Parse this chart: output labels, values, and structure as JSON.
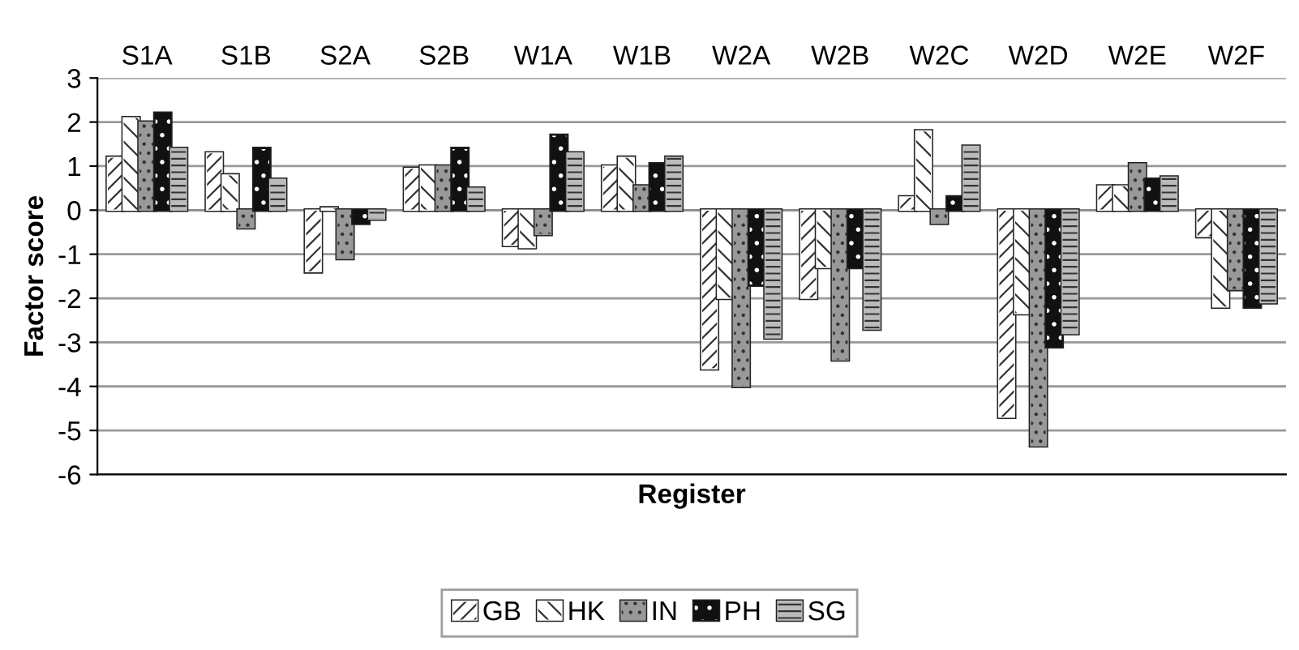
{
  "chart_data": {
    "type": "bar",
    "xlabel": "Register",
    "ylabel": "Factor score",
    "categories": [
      "S1A",
      "S1B",
      "S2A",
      "S2B",
      "W1A",
      "W1B",
      "W2A",
      "W2B",
      "W2C",
      "W2D",
      "W2E",
      "W2F"
    ],
    "series": [
      {
        "name": "GB",
        "color": "#ffffff",
        "values": [
          1.2,
          1.3,
          -1.4,
          0.95,
          -0.8,
          1.0,
          -3.6,
          -2.0,
          0.3,
          -4.7,
          0.55,
          -0.6
        ]
      },
      {
        "name": "HK",
        "color": "#ffffff",
        "values": [
          2.1,
          0.8,
          0.05,
          1.0,
          -0.85,
          1.2,
          -2.0,
          -1.3,
          1.8,
          -2.35,
          0.55,
          -2.2
        ]
      },
      {
        "name": "IN",
        "color": "#999999",
        "values": [
          2.0,
          -0.4,
          -1.1,
          1.0,
          -0.55,
          0.55,
          -4.0,
          -3.4,
          -0.3,
          -5.35,
          1.05,
          -1.8
        ]
      },
      {
        "name": "PH",
        "color": "#111111",
        "values": [
          2.2,
          1.4,
          -0.3,
          1.4,
          1.7,
          1.05,
          -1.7,
          -1.3,
          0.3,
          -3.1,
          0.7,
          -2.2
        ]
      },
      {
        "name": "SG",
        "color": "#bbbbbb",
        "values": [
          1.4,
          0.7,
          -0.2,
          0.5,
          1.3,
          1.2,
          -2.9,
          -2.7,
          1.45,
          -2.8,
          0.75,
          -2.1
        ]
      }
    ],
    "ylim": [
      -6,
      3
    ],
    "yticks": [
      -6,
      -5,
      -4,
      -3,
      -2,
      -1,
      0,
      1,
      2,
      3
    ],
    "grid": "y",
    "legend": "bottom"
  }
}
